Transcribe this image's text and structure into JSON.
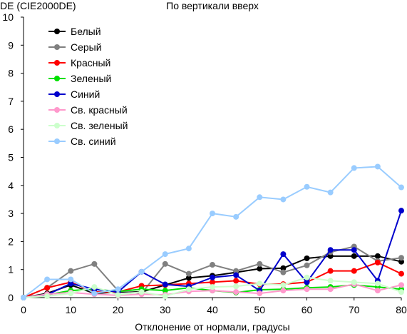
{
  "chart_data": {
    "type": "line",
    "title": "По вертикали вверх",
    "ylabel": "DE (CIE2000DE)",
    "xlabel": "Отклонение от нормали, градусы",
    "xlim": [
      0,
      80
    ],
    "ylim": [
      0,
      10
    ],
    "x_ticks": [
      0,
      10,
      20,
      30,
      40,
      50,
      60,
      70,
      80
    ],
    "y_ticks": [
      0,
      1,
      2,
      3,
      4,
      5,
      6,
      7,
      8,
      9,
      10
    ],
    "legend_position": "top-left",
    "grid": false,
    "x": [
      0,
      5,
      10,
      15,
      20,
      25,
      30,
      35,
      40,
      45,
      50,
      55,
      60,
      65,
      70,
      75,
      80
    ],
    "series": [
      {
        "name": "Белый",
        "color": "#000000",
        "values": [
          0,
          0.15,
          0.45,
          0.15,
          0.2,
          0.2,
          0.45,
          0.7,
          0.78,
          0.9,
          1.03,
          1.05,
          1.4,
          1.48,
          1.48,
          1.48,
          1.28
        ]
      },
      {
        "name": "Серый",
        "color": "#808080",
        "values": [
          0,
          0.35,
          0.95,
          1.2,
          0.25,
          0.15,
          1.2,
          0.85,
          1.17,
          0.95,
          1.2,
          0.9,
          1.15,
          1.62,
          1.82,
          1.3,
          1.42
        ]
      },
      {
        "name": "Красный",
        "color": "#ff0000",
        "values": [
          0,
          0.35,
          0.55,
          0.2,
          0.2,
          0.42,
          0.45,
          0.5,
          0.55,
          0.6,
          0.48,
          0.48,
          0.55,
          0.95,
          0.95,
          1.25,
          0.85
        ]
      },
      {
        "name": "Зеленый",
        "color": "#00e000",
        "values": [
          0,
          0.1,
          0.25,
          0.3,
          0.22,
          0.3,
          0.25,
          0.35,
          0.25,
          0.18,
          0.28,
          0.3,
          0.35,
          0.38,
          0.45,
          0.38,
          0.3
        ]
      },
      {
        "name": "Синий",
        "color": "#0000cc",
        "values": [
          0,
          0.1,
          0.5,
          0.3,
          0.2,
          0.92,
          0.47,
          0.4,
          0.72,
          0.8,
          0.25,
          1.55,
          0.55,
          1.7,
          1.7,
          0.6,
          3.1
        ]
      },
      {
        "name": "Св. красный",
        "color": "#ff99cc",
        "values": [
          0,
          0.12,
          0.18,
          0.12,
          0.08,
          0.12,
          0.1,
          0.22,
          0.25,
          0.2,
          0.15,
          0.25,
          0.3,
          0.3,
          0.48,
          0.25,
          0.45
        ]
      },
      {
        "name": "Св. зеленый",
        "color": "#ccffcc",
        "values": [
          0,
          0.05,
          0.15,
          0.38,
          0.1,
          0.2,
          0.05,
          0.3,
          0.38,
          0.4,
          0.5,
          0.45,
          0.72,
          0.6,
          0.55,
          0.5,
          0.2
        ]
      },
      {
        "name": "Св. синий",
        "color": "#99ccff",
        "values": [
          0,
          0.65,
          0.65,
          0.15,
          0.3,
          0.92,
          1.55,
          1.75,
          3.0,
          2.88,
          3.58,
          3.5,
          3.95,
          3.75,
          4.62,
          4.67,
          3.93
        ]
      }
    ]
  }
}
